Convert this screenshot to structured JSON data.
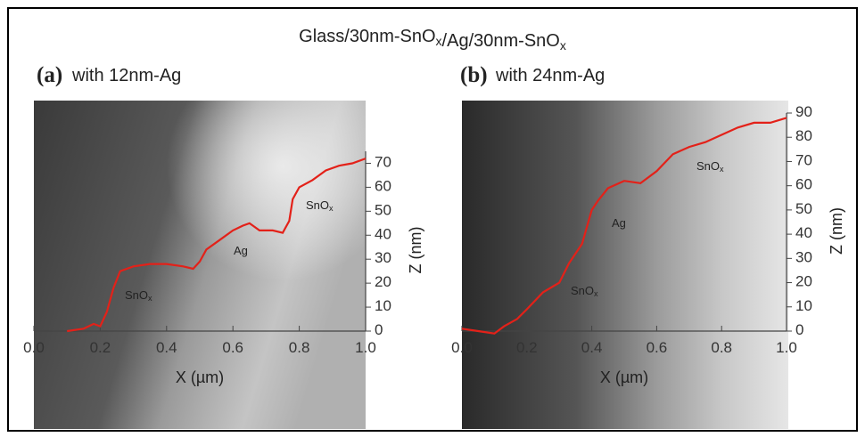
{
  "title": "Glass/30nm-SnOx/Ag/30nm-SnOx",
  "chart_data": [
    {
      "type": "line",
      "panel_label": "(a)",
      "subtitle": "with 12nm-Ag",
      "xlabel": "X (µm)",
      "ylabel": "Z (nm)",
      "xlim": [
        0,
        1
      ],
      "ylim": [
        0,
        75
      ],
      "xticks": [
        {
          "value": 0,
          "label": "0.0"
        },
        0.2,
        0.4,
        0.6,
        0.8,
        {
          "value": 1,
          "label": "1.0"
        }
      ],
      "yticks": [
        0,
        10,
        20,
        30,
        40,
        50,
        60,
        70
      ],
      "annotations": [
        "SnOx",
        "Ag",
        "SnOx"
      ],
      "series": [
        {
          "color": "#e32119",
          "x": [
            0.1,
            0.15,
            0.18,
            0.2,
            0.22,
            0.24,
            0.26,
            0.3,
            0.35,
            0.4,
            0.45,
            0.48,
            0.5,
            0.52,
            0.56,
            0.6,
            0.63,
            0.65,
            0.68,
            0.72,
            0.75,
            0.77,
            0.78,
            0.8,
            0.84,
            0.88,
            0.92,
            0.96,
            1.0
          ],
          "values": [
            0,
            1,
            3,
            2,
            8,
            18,
            25,
            27,
            28,
            28,
            27,
            26,
            29,
            34,
            38,
            42,
            44,
            45,
            42,
            42,
            41,
            46,
            55,
            60,
            63,
            67,
            69,
            70,
            72
          ]
        }
      ]
    },
    {
      "type": "line",
      "panel_label": "(b)",
      "subtitle": "with 24nm-Ag",
      "xlabel": "X (µm)",
      "ylabel": "Z (nm)",
      "xlim": [
        0,
        1
      ],
      "ylim": [
        0,
        90
      ],
      "xticks": [
        {
          "value": 0,
          "label": "0.0"
        },
        0.2,
        0.4,
        0.6,
        0.8,
        {
          "value": 1,
          "label": "1.0"
        }
      ],
      "yticks": [
        0,
        10,
        20,
        30,
        40,
        50,
        60,
        70,
        80,
        90
      ],
      "annotations": [
        "Ag",
        "SnOx",
        "SnOx"
      ],
      "series": [
        {
          "color": "#e32119",
          "x": [
            0,
            0.05,
            0.1,
            0.13,
            0.17,
            0.2,
            0.25,
            0.3,
            0.33,
            0.37,
            0.4,
            0.42,
            0.45,
            0.5,
            0.55,
            0.6,
            0.65,
            0.7,
            0.75,
            0.8,
            0.85,
            0.9,
            0.95,
            1.0
          ],
          "values": [
            1,
            0,
            -1,
            2,
            5,
            9,
            16,
            20,
            28,
            36,
            50,
            54,
            59,
            62,
            61,
            66,
            73,
            76,
            78,
            81,
            84,
            86,
            86,
            88
          ]
        }
      ]
    }
  ]
}
